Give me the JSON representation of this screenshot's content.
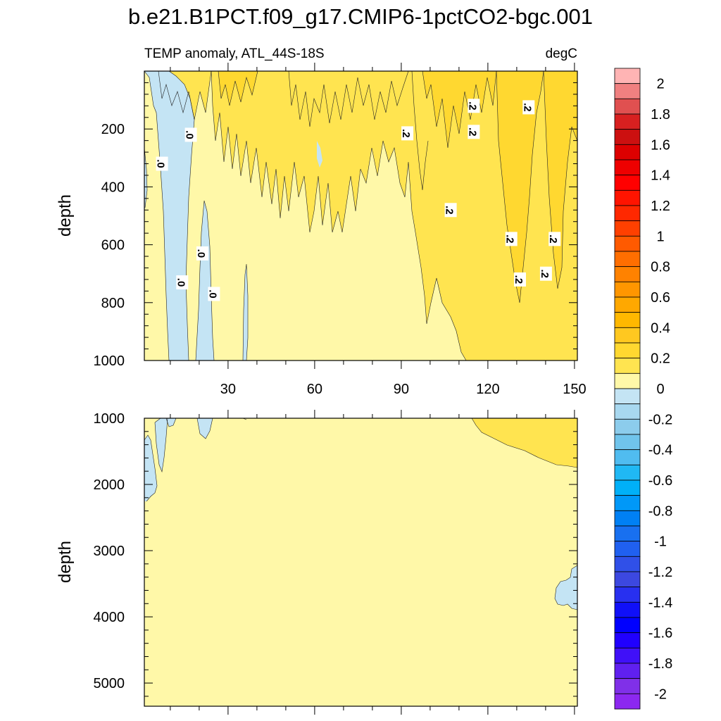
{
  "title": "b.e21.B1PCT.f09_g17.CMIP6-1pctCO2-bgc.001",
  "chart_data": [
    {
      "type": "heatmap",
      "panel": "upper",
      "left_subtitle": "TEMP anomaly, ATL_44S-18S",
      "right_subtitle": "degC",
      "xlabel": "",
      "ylabel": "depth",
      "xlim": [
        1,
        151
      ],
      "ylim": [
        0,
        1000
      ],
      "y_inverted": true,
      "xticks": [
        30,
        60,
        90,
        120,
        150
      ],
      "yticks": [
        200,
        400,
        600,
        800,
        1000
      ],
      "contour_labels": [
        {
          "text": ".0",
          "x": 7,
          "y": 320
        },
        {
          "text": ".0",
          "x": 17,
          "y": 220
        },
        {
          "text": ".0",
          "x": 21,
          "y": 630
        },
        {
          "text": ".0",
          "x": 14,
          "y": 730
        },
        {
          "text": ".0",
          "x": 25,
          "y": 770
        },
        {
          "text": ".2",
          "x": 92,
          "y": 215
        },
        {
          "text": ".2",
          "x": 115,
          "y": 120
        },
        {
          "text": ".2",
          "x": 115,
          "y": 210
        },
        {
          "text": ".2",
          "x": 134,
          "y": 125
        },
        {
          "text": ".2",
          "x": 107,
          "y": 480
        },
        {
          "text": ".2",
          "x": 128,
          "y": 580
        },
        {
          "text": ".2",
          "x": 143,
          "y": 580
        },
        {
          "text": ".2",
          "x": 131,
          "y": 720
        },
        {
          "text": ".2",
          "x": 140,
          "y": 700
        }
      ]
    },
    {
      "type": "heatmap",
      "panel": "lower",
      "xlabel": "",
      "ylabel": "depth",
      "xlim": [
        1,
        151
      ],
      "ylim": [
        1000,
        5350
      ],
      "y_inverted": true,
      "xticks": [
        30,
        60,
        90,
        120,
        150
      ],
      "yticks": [
        1000,
        2000,
        3000,
        4000,
        5000
      ]
    }
  ],
  "colorbar": {
    "units": "degC",
    "min": -2.1,
    "max": 2.1,
    "step": 0.1,
    "tick_labels": [
      "2",
      "1.8",
      "1.6",
      "1.4",
      "1.2",
      "1",
      "0.8",
      "0.6",
      "0.4",
      "0.2",
      "0",
      "-0.2",
      "-0.4",
      "-0.6",
      "-0.8",
      "-1",
      "-1.2",
      "-1.4",
      "-1.6",
      "-1.8",
      "-2"
    ],
    "tick_values": [
      2,
      1.8,
      1.6,
      1.4,
      1.2,
      1,
      0.8,
      0.6,
      0.4,
      0.2,
      0,
      -0.2,
      -0.4,
      -0.6,
      -0.8,
      -1,
      -1.2,
      -1.4,
      -1.6,
      -1.8,
      -2
    ],
    "colors": [
      "#FFB4B4",
      "#F08080",
      "#E05050",
      "#D82020",
      "#CC1010",
      "#DD0000",
      "#EE0000",
      "#FF0000",
      "#FF1400",
      "#FF2800",
      "#FF4000",
      "#FF5A00",
      "#FF6E00",
      "#FF8200",
      "#FF9600",
      "#FFA800",
      "#FFB800",
      "#FFC820",
      "#FFD830",
      "#FFE450",
      "#FFF8A8",
      "#C4E4F4",
      "#A8D8F0",
      "#8CCCEC",
      "#70C4EC",
      "#50BCF0",
      "#20B8F4",
      "#00B0F8",
      "#0098F8",
      "#0080F4",
      "#1870F0",
      "#2060F0",
      "#3050E8",
      "#3C48E0",
      "#2830F0",
      "#1010F8",
      "#0000FF",
      "#2000FF",
      "#4010F8",
      "#6020F0",
      "#8030E8",
      "#8C28F0"
    ]
  },
  "fill_colors": {
    "zero_band": "#FFF8A8",
    "pos_1": "#FFE450",
    "pos_2": "#FFD830",
    "neg_1": "#C4E4F4",
    "neg_2": "#A8D8F0"
  }
}
